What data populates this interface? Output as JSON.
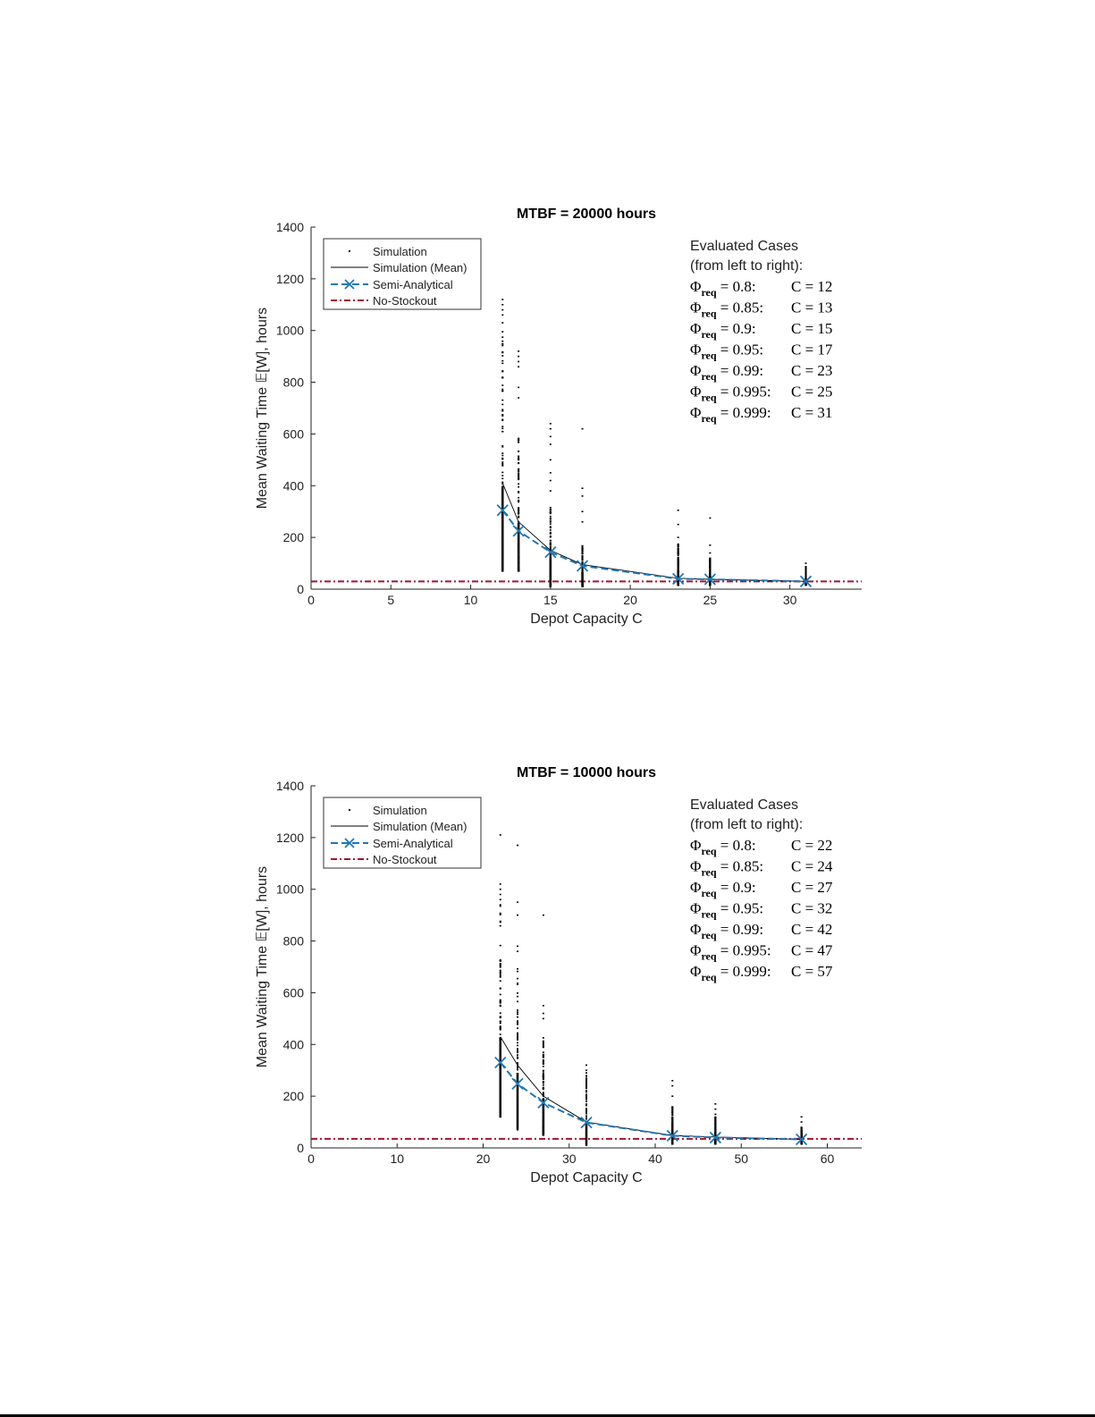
{
  "chart_data": [
    {
      "type": "scatter",
      "title": "MTBF = 20000 hours",
      "xlabel": "Depot Capacity C",
      "ylabel": "Mean Waiting Time 𝔼[W], hours",
      "xlim": [
        0,
        34.5
      ],
      "ylim": [
        0,
        1400
      ],
      "xticks": [
        0,
        5,
        10,
        15,
        20,
        25,
        30
      ],
      "yticks": [
        0,
        200,
        400,
        600,
        800,
        1000,
        1200,
        1400
      ],
      "grid": false,
      "legend_position": "top-left",
      "legend": {
        "simulation": "Simulation",
        "simulation_mean": "Simulation (Mean)",
        "semi_analytical": "Semi-Analytical",
        "no_stockout": "No-Stockout"
      },
      "colors": {
        "simulation": "#000000",
        "semi_analytical": "#1f77b4",
        "no_stockout": "#a2142f"
      },
      "annotation": {
        "heading1": "Evaluated Cases",
        "heading2": "(from left to right):",
        "phi": "Φ",
        "sub": "req",
        "cases": [
          {
            "phi": "0.8:",
            "c": "12"
          },
          {
            "phi": "0.85:",
            "c": "13"
          },
          {
            "phi": "0.9:",
            "c": "15"
          },
          {
            "phi": "0.95:",
            "c": "17"
          },
          {
            "phi": "0.99:",
            "c": "23"
          },
          {
            "phi": "0.995:",
            "c": "25"
          },
          {
            "phi": "0.999:",
            "c": "31"
          }
        ]
      },
      "x": [
        12,
        13,
        15,
        17,
        23,
        25,
        31
      ],
      "simulation_mean": [
        410,
        260,
        150,
        95,
        42,
        38,
        30
      ],
      "semi_analytical": [
        305,
        225,
        143,
        90,
        40,
        38,
        30
      ],
      "no_stockout": 30,
      "simulation_ranges": [
        [
          70,
          1000
        ],
        [
          70,
          600
        ],
        [
          10,
          330
        ],
        [
          10,
          170
        ],
        [
          15,
          180
        ],
        [
          15,
          120
        ],
        [
          15,
          90
        ]
      ],
      "simulation_outliers": [
        [
          1120,
          1100,
          1080,
          1060,
          1030
        ],
        [
          920,
          900,
          880,
          860,
          780,
          740
        ],
        [
          640,
          620,
          590,
          560,
          500,
          450,
          420,
          380
        ],
        [
          620,
          390,
          360,
          300,
          260
        ],
        [
          305,
          250,
          200
        ],
        [
          275,
          170,
          140
        ],
        [
          100,
          75
        ]
      ]
    },
    {
      "type": "scatter",
      "title": "MTBF = 10000 hours",
      "xlabel": "Depot Capacity C",
      "ylabel": "Mean Waiting Time 𝔼[W], hours",
      "xlim": [
        0,
        64
      ],
      "ylim": [
        0,
        1400
      ],
      "xticks": [
        0,
        10,
        20,
        30,
        40,
        50,
        60
      ],
      "yticks": [
        0,
        200,
        400,
        600,
        800,
        1000,
        1200,
        1400
      ],
      "grid": false,
      "legend_position": "top-left",
      "legend": {
        "simulation": "Simulation",
        "simulation_mean": "Simulation (Mean)",
        "semi_analytical": "Semi-Analytical",
        "no_stockout": "No-Stockout"
      },
      "colors": {
        "simulation": "#000000",
        "semi_analytical": "#1f77b4",
        "no_stockout": "#a2142f"
      },
      "annotation": {
        "heading1": "Evaluated Cases",
        "heading2": "(from left to right):",
        "phi": "Φ",
        "sub": "req",
        "cases": [
          {
            "phi": "0.8:",
            "c": "22"
          },
          {
            "phi": "0.85:",
            "c": "24"
          },
          {
            "phi": "0.9:",
            "c": "27"
          },
          {
            "phi": "0.95:",
            "c": "32"
          },
          {
            "phi": "0.99:",
            "c": "42"
          },
          {
            "phi": "0.995:",
            "c": "47"
          },
          {
            "phi": "0.999:",
            "c": "57"
          }
        ]
      },
      "x": [
        22,
        24,
        27,
        32,
        42,
        47,
        57
      ],
      "simulation_mean": [
        430,
        320,
        200,
        100,
        48,
        42,
        33
      ],
      "semi_analytical": [
        330,
        248,
        175,
        98,
        47,
        40,
        33
      ],
      "no_stockout": 35,
      "simulation_ranges": [
        [
          120,
          1000
        ],
        [
          70,
          700
        ],
        [
          50,
          450
        ],
        [
          10,
          280
        ],
        [
          15,
          160
        ],
        [
          15,
          120
        ],
        [
          15,
          80
        ]
      ],
      "simulation_outliers": [
        [
          1210,
          1020,
          1000,
          980,
          960,
          940
        ],
        [
          1170,
          950,
          900,
          780,
          760
        ],
        [
          900,
          550,
          520,
          500
        ],
        [
          320,
          300,
          290
        ],
        [
          260,
          240,
          200
        ],
        [
          170,
          150,
          130
        ],
        [
          120,
          100
        ]
      ]
    }
  ]
}
